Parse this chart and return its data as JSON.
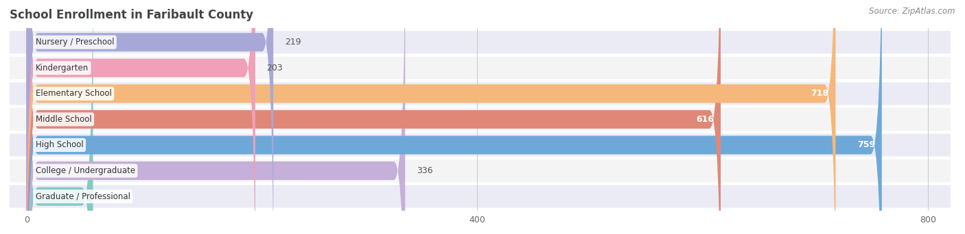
{
  "title": "School Enrollment in Faribault County",
  "source": "Source: ZipAtlas.com",
  "categories": [
    "Nursery / Preschool",
    "Kindergarten",
    "Elementary School",
    "Middle School",
    "High School",
    "College / Undergraduate",
    "Graduate / Professional"
  ],
  "values": [
    219,
    203,
    718,
    616,
    759,
    336,
    59
  ],
  "bar_colors": [
    "#a8a8d8",
    "#f0a0b8",
    "#f5b87a",
    "#e08878",
    "#6ea8d8",
    "#c4b0d8",
    "#88c8c4"
  ],
  "row_bg_colors": [
    "#ebebf5",
    "#f4f4f4"
  ],
  "xlim_max": 820,
  "xticks": [
    0,
    400,
    800
  ],
  "background_color": "#ffffff",
  "title_color": "#444444",
  "source_color": "#888888",
  "label_white_threshold": 600
}
